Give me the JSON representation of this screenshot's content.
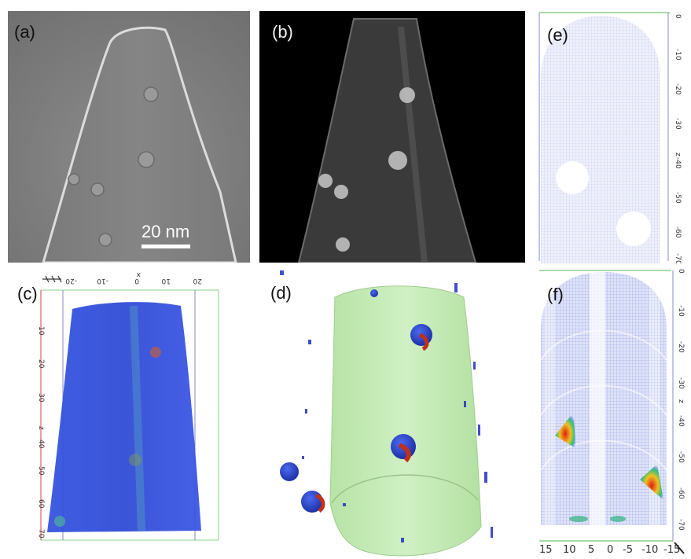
{
  "panels": {
    "a": {
      "label": "(a)",
      "scale_bar": "20 nm"
    },
    "b": {
      "label": "(b)"
    },
    "c": {
      "label": "(c)",
      "top_ticks": [
        "-20",
        "-10",
        "0",
        "10",
        "20"
      ],
      "top_axis_letter": "x",
      "side_ticks": [
        "10",
        "20",
        "30",
        "40",
        "50",
        "60",
        "70"
      ],
      "side_axis_letter": "z"
    },
    "d": {
      "label": "(d)"
    },
    "e": {
      "label": "(e)",
      "side_ticks": [
        "0",
        "-10",
        "-20",
        "-30",
        "-40",
        "-50",
        "-60",
        "-70"
      ],
      "side_axis_letter": "z"
    },
    "f": {
      "label": "(f)",
      "side_ticks": [
        "0",
        "-10",
        "-20",
        "-30",
        "-40",
        "-50",
        "-60",
        "-70"
      ],
      "side_axis_letter": "z",
      "bottom_ticks": [
        "15",
        "10",
        "5",
        "0",
        "-5",
        "-10",
        "-15"
      ]
    }
  },
  "colors": {
    "tem_bg": "#8a8a8a",
    "tomo_bg": "#000000",
    "density_blue": "#2a4ad8",
    "surface_green": "#c6ebb8",
    "mesh_blue": "#b8c0f0",
    "hot_red": "#e03010"
  }
}
